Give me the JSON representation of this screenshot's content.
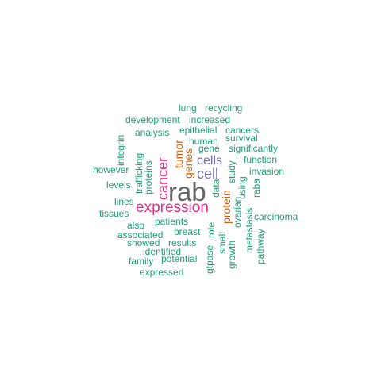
{
  "colors": {
    "background": "#ffffff",
    "teal": "#1B9E77",
    "orange": "#D95F02",
    "purple": "#7570B3",
    "magenta": "#E7298A",
    "gray": "#666666"
  },
  "words": [
    {
      "id": "rab",
      "text": "rab",
      "color": "gray",
      "vertical": false
    },
    {
      "id": "expression",
      "text": "expression",
      "color": "magenta",
      "vertical": false
    },
    {
      "id": "cancer",
      "text": "cancer",
      "color": "magenta",
      "vertical": true
    },
    {
      "id": "cell",
      "text": "cell",
      "color": "purple",
      "vertical": false
    },
    {
      "id": "cells",
      "text": "cells",
      "color": "purple",
      "vertical": false
    },
    {
      "id": "protein",
      "text": "protein",
      "color": "orange",
      "vertical": true
    },
    {
      "id": "genes",
      "text": "genes",
      "color": "orange",
      "vertical": true
    },
    {
      "id": "tumor",
      "text": "tumor",
      "color": "orange",
      "vertical": true
    },
    {
      "id": "lung",
      "text": "lung",
      "color": "teal",
      "vertical": false
    },
    {
      "id": "recycling",
      "text": "recycling",
      "color": "teal",
      "vertical": false
    },
    {
      "id": "development",
      "text": "development",
      "color": "teal",
      "vertical": false
    },
    {
      "id": "increased",
      "text": "increased",
      "color": "teal",
      "vertical": false
    },
    {
      "id": "analysis",
      "text": "analysis",
      "color": "teal",
      "vertical": false
    },
    {
      "id": "epithelial",
      "text": "epithelial",
      "color": "teal",
      "vertical": false
    },
    {
      "id": "cancers",
      "text": "cancers",
      "color": "teal",
      "vertical": false
    },
    {
      "id": "human",
      "text": "human",
      "color": "teal",
      "vertical": false
    },
    {
      "id": "survival",
      "text": "survival",
      "color": "teal",
      "vertical": false
    },
    {
      "id": "integrin",
      "text": "integrin",
      "color": "teal",
      "vertical": true
    },
    {
      "id": "gene",
      "text": "gene",
      "color": "teal",
      "vertical": false
    },
    {
      "id": "significantly",
      "text": "significantly",
      "color": "teal",
      "vertical": false
    },
    {
      "id": "trafficking",
      "text": "trafficking",
      "color": "teal",
      "vertical": true
    },
    {
      "id": "proteins",
      "text": "proteins",
      "color": "teal",
      "vertical": true
    },
    {
      "id": "function",
      "text": "function",
      "color": "teal",
      "vertical": false
    },
    {
      "id": "however",
      "text": "however",
      "color": "teal",
      "vertical": false
    },
    {
      "id": "study",
      "text": "study",
      "color": "teal",
      "vertical": true
    },
    {
      "id": "invasion",
      "text": "invasion",
      "color": "teal",
      "vertical": false
    },
    {
      "id": "levels",
      "text": "levels",
      "color": "teal",
      "vertical": false
    },
    {
      "id": "data",
      "text": "data",
      "color": "teal",
      "vertical": true
    },
    {
      "id": "using",
      "text": "using",
      "color": "teal",
      "vertical": true
    },
    {
      "id": "raba",
      "text": "raba",
      "color": "teal",
      "vertical": true
    },
    {
      "id": "lines",
      "text": "lines",
      "color": "teal",
      "vertical": false
    },
    {
      "id": "tissues",
      "text": "tissues",
      "color": "teal",
      "vertical": false
    },
    {
      "id": "patients",
      "text": "patients",
      "color": "teal",
      "vertical": false
    },
    {
      "id": "ovarian",
      "text": "ovarian",
      "color": "teal",
      "vertical": true
    },
    {
      "id": "carcinoma",
      "text": "carcinoma",
      "color": "teal",
      "vertical": false
    },
    {
      "id": "metastasis",
      "text": "metastasis",
      "color": "teal",
      "vertical": true
    },
    {
      "id": "also",
      "text": "also",
      "color": "teal",
      "vertical": false
    },
    {
      "id": "breast",
      "text": "breast",
      "color": "teal",
      "vertical": false
    },
    {
      "id": "role",
      "text": "role",
      "color": "teal",
      "vertical": true
    },
    {
      "id": "associated",
      "text": "associated",
      "color": "teal",
      "vertical": false
    },
    {
      "id": "pathway",
      "text": "pathway",
      "color": "teal",
      "vertical": true
    },
    {
      "id": "showed",
      "text": "showed",
      "color": "teal",
      "vertical": false
    },
    {
      "id": "results",
      "text": "results",
      "color": "teal",
      "vertical": false
    },
    {
      "id": "small",
      "text": "small",
      "color": "teal",
      "vertical": true
    },
    {
      "id": "growth",
      "text": "growth",
      "color": "teal",
      "vertical": true
    },
    {
      "id": "identified",
      "text": "identified",
      "color": "teal",
      "vertical": false
    },
    {
      "id": "gtpase",
      "text": "gtpase",
      "color": "teal",
      "vertical": true
    },
    {
      "id": "family",
      "text": "family",
      "color": "teal",
      "vertical": false
    },
    {
      "id": "potential",
      "text": "potential",
      "color": "teal",
      "vertical": false
    },
    {
      "id": "expressed",
      "text": "expressed",
      "color": "teal",
      "vertical": false
    }
  ]
}
